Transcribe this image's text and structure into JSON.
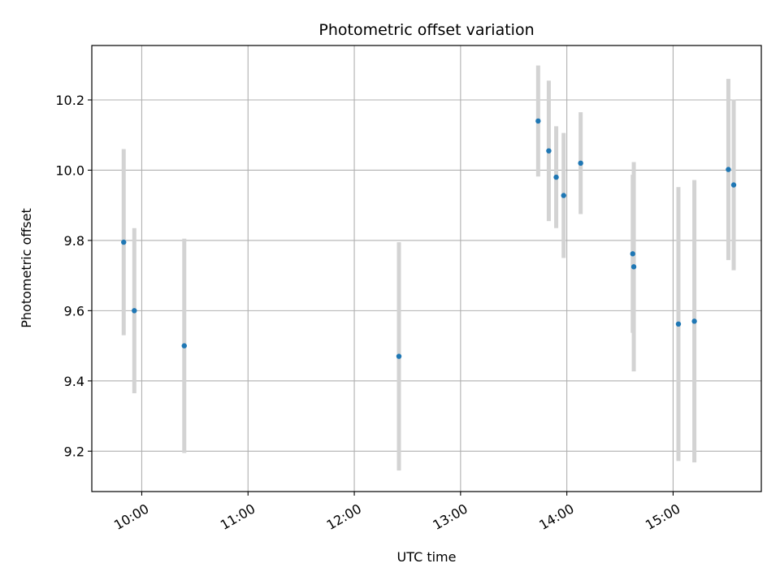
{
  "chart_data": {
    "type": "scatter",
    "title": "Photometric offset variation",
    "xlabel": "UTC time",
    "ylabel": "Photometric offset",
    "xlim": [
      9.53,
      15.83
    ],
    "ylim": [
      9.085,
      10.355
    ],
    "grid": true,
    "x_ticks": [
      {
        "value": 10,
        "label": "10:00"
      },
      {
        "value": 11,
        "label": "11:00"
      },
      {
        "value": 12,
        "label": "12:00"
      },
      {
        "value": 13,
        "label": "13:00"
      },
      {
        "value": 14,
        "label": "14:00"
      },
      {
        "value": 15,
        "label": "15:00"
      }
    ],
    "y_ticks": [
      {
        "value": 9.2,
        "label": "9.2"
      },
      {
        "value": 9.4,
        "label": "9.4"
      },
      {
        "value": 9.6,
        "label": "9.6"
      },
      {
        "value": 9.8,
        "label": "9.8"
      },
      {
        "value": 10.0,
        "label": "10.0"
      },
      {
        "value": 10.2,
        "label": "10.2"
      }
    ],
    "points_color": "#1f77b4",
    "errorbar_color": "#d3d3d3",
    "points": [
      {
        "x": 9.83,
        "y": 9.795,
        "err": 0.265
      },
      {
        "x": 9.93,
        "y": 9.6,
        "err": 0.235
      },
      {
        "x": 10.4,
        "y": 9.5,
        "err": 0.305
      },
      {
        "x": 12.42,
        "y": 9.47,
        "err": 0.325
      },
      {
        "x": 13.73,
        "y": 10.14,
        "err": 0.158
      },
      {
        "x": 13.83,
        "y": 10.055,
        "err": 0.2
      },
      {
        "x": 13.9,
        "y": 9.98,
        "err": 0.145
      },
      {
        "x": 13.97,
        "y": 9.928,
        "err": 0.178
      },
      {
        "x": 14.13,
        "y": 10.02,
        "err": 0.145
      },
      {
        "x": 14.62,
        "y": 9.762,
        "err": 0.225
      },
      {
        "x": 14.63,
        "y": 9.725,
        "err": 0.298
      },
      {
        "x": 15.05,
        "y": 9.562,
        "err": 0.39
      },
      {
        "x": 15.2,
        "y": 9.57,
        "err": 0.402
      },
      {
        "x": 15.52,
        "y": 10.002,
        "err": 0.258
      },
      {
        "x": 15.57,
        "y": 9.958,
        "err": 0.243
      }
    ]
  }
}
